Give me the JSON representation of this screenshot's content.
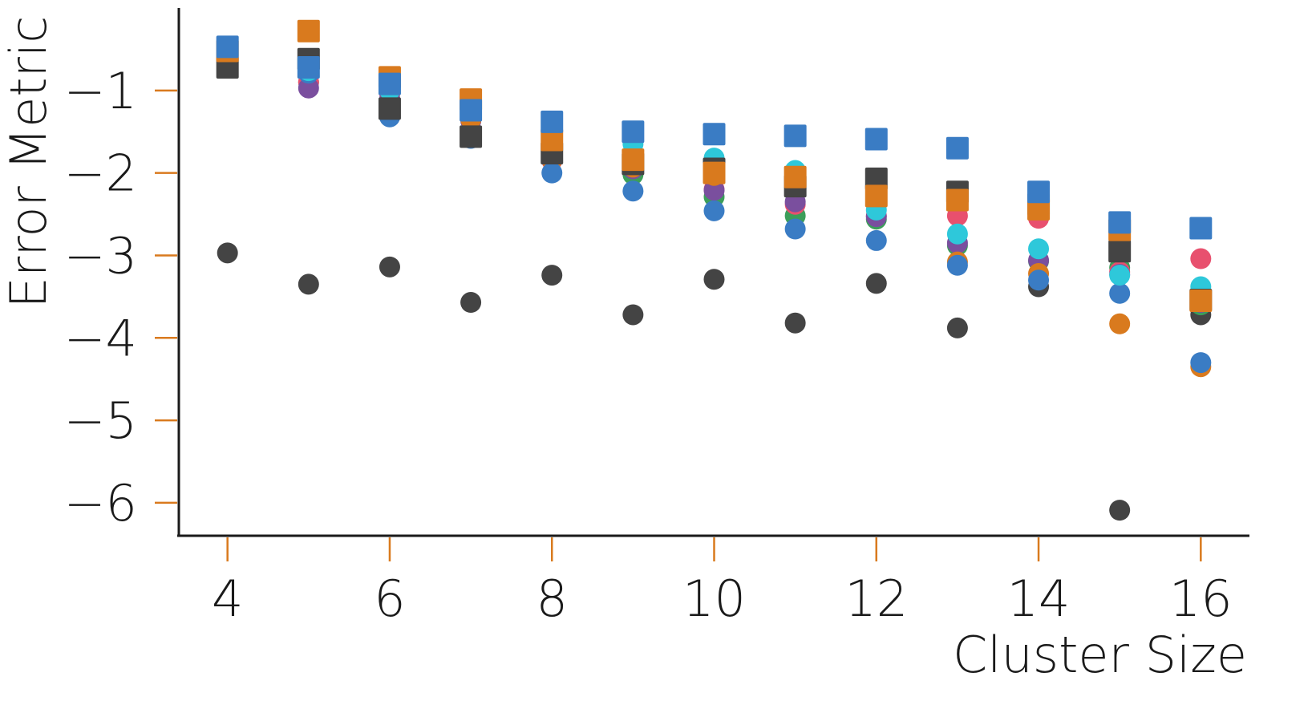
{
  "chart_data": {
    "type": "scatter",
    "title": "",
    "xlabel": "Cluster Size",
    "ylabel": "Error Metric",
    "xlim": [
      3.4,
      16.6
    ],
    "ylim": [
      -6.4,
      0.0
    ],
    "x_ticks": [
      4,
      6,
      8,
      10,
      12,
      14,
      16
    ],
    "x_tick_labels": [
      "4",
      "6",
      "8",
      "10",
      "12",
      "14",
      "16"
    ],
    "y_ticks": [
      -1,
      -2,
      -3,
      -4,
      -5,
      -6
    ],
    "y_tick_labels": [
      "−1",
      "−2",
      "−3",
      "−4",
      "−5",
      "−6"
    ],
    "grid": false,
    "legend": "none",
    "tick_color": "#d97a1e",
    "axis_color": "#1a1a1a",
    "series": [
      {
        "marker": "circle",
        "color": "#444444",
        "x": [
          4,
          5,
          6,
          7,
          8,
          9,
          10,
          11,
          12,
          13,
          14,
          15,
          16
        ],
        "y": [
          -2.97,
          -3.35,
          -3.14,
          -3.57,
          -3.24,
          -3.72,
          -3.29,
          -3.82,
          -3.34,
          -3.88,
          -3.38,
          -6.09,
          -3.72
        ]
      },
      {
        "marker": "circle",
        "color": "#3c9e5a",
        "x": [
          4,
          5,
          6,
          7,
          8,
          9,
          10,
          11,
          12,
          13,
          14,
          15,
          16
        ],
        "y": [
          -0.55,
          -0.9,
          -1.03,
          -1.33,
          -1.82,
          -2.02,
          -2.29,
          -2.52,
          -2.56,
          -2.88,
          -3.07,
          -3.15,
          -3.6
        ]
      },
      {
        "marker": "circle",
        "color": "#e8506e",
        "x": [
          4,
          5,
          6,
          7,
          8,
          9,
          10,
          11,
          12,
          13,
          14,
          15,
          16
        ],
        "y": [
          -0.55,
          -0.9,
          -1.04,
          -1.3,
          -1.85,
          -1.92,
          -2.2,
          -2.38,
          -2.52,
          -2.52,
          -2.55,
          -3.2,
          -3.04
        ]
      },
      {
        "marker": "circle",
        "color": "#7a4f9e",
        "x": [
          4,
          5,
          6,
          7,
          8,
          9,
          10,
          11,
          12,
          13,
          14,
          15,
          16
        ],
        "y": [
          -0.55,
          -0.97,
          -1.1,
          -1.37,
          -1.83,
          -1.95,
          -2.21,
          -2.35,
          -2.53,
          -2.85,
          -3.06,
          -3.23,
          -3.57
        ]
      },
      {
        "marker": "circle",
        "color": "#d97a1e",
        "x": [
          4,
          5,
          6,
          7,
          8,
          9,
          10,
          11,
          12,
          13,
          14,
          15,
          16
        ],
        "y": [
          -0.53,
          -0.78,
          -1.0,
          -1.35,
          -1.84,
          -1.93,
          -2.03,
          -2.17,
          -2.38,
          -3.08,
          -3.22,
          -3.83,
          -4.35
        ]
      },
      {
        "marker": "circle",
        "color": "#3a7cc4",
        "x": [
          4,
          5,
          6,
          7,
          8,
          9,
          10,
          11,
          12,
          13,
          14,
          15,
          16
        ],
        "y": [
          -0.53,
          -0.79,
          -1.32,
          -1.58,
          -2.0,
          -2.22,
          -2.46,
          -2.68,
          -2.82,
          -3.12,
          -3.3,
          -3.46,
          -4.3
        ]
      },
      {
        "marker": "circle",
        "color": "#2ec8da",
        "x": [
          4,
          5,
          6,
          7,
          8,
          9,
          10,
          11,
          12,
          13,
          14,
          15,
          16
        ],
        "y": [
          -0.47,
          -0.76,
          -1.0,
          -1.22,
          -1.6,
          -1.65,
          -1.82,
          -1.97,
          -2.45,
          -2.74,
          -2.92,
          -3.24,
          -3.38
        ]
      },
      {
        "marker": "square",
        "color": "#444444",
        "x": [
          4,
          5,
          6,
          7,
          8,
          9,
          10,
          11,
          12,
          13,
          14,
          15,
          16
        ],
        "y": [
          -0.72,
          -0.62,
          -1.22,
          -1.56,
          -1.76,
          -1.89,
          -1.95,
          -2.16,
          -2.07,
          -2.23,
          -2.38,
          -2.95,
          -3.54
        ]
      },
      {
        "marker": "square",
        "color": "#d97a1e",
        "x": [
          4,
          5,
          6,
          7,
          8,
          9,
          10,
          11,
          12,
          13,
          14,
          15,
          16
        ],
        "y": [
          -0.52,
          -0.28,
          -0.84,
          -1.11,
          -1.6,
          -1.84,
          -2.0,
          -2.05,
          -2.28,
          -2.33,
          -2.44,
          -2.69,
          -3.55
        ]
      },
      {
        "marker": "square",
        "color": "#3a7cc4",
        "x": [
          4,
          5,
          6,
          7,
          8,
          9,
          10,
          11,
          12,
          13,
          14,
          15,
          16
        ],
        "y": [
          -0.47,
          -0.72,
          -0.92,
          -1.24,
          -1.38,
          -1.5,
          -1.53,
          -1.55,
          -1.59,
          -1.7,
          -2.23,
          -2.6,
          -2.67
        ]
      }
    ]
  }
}
